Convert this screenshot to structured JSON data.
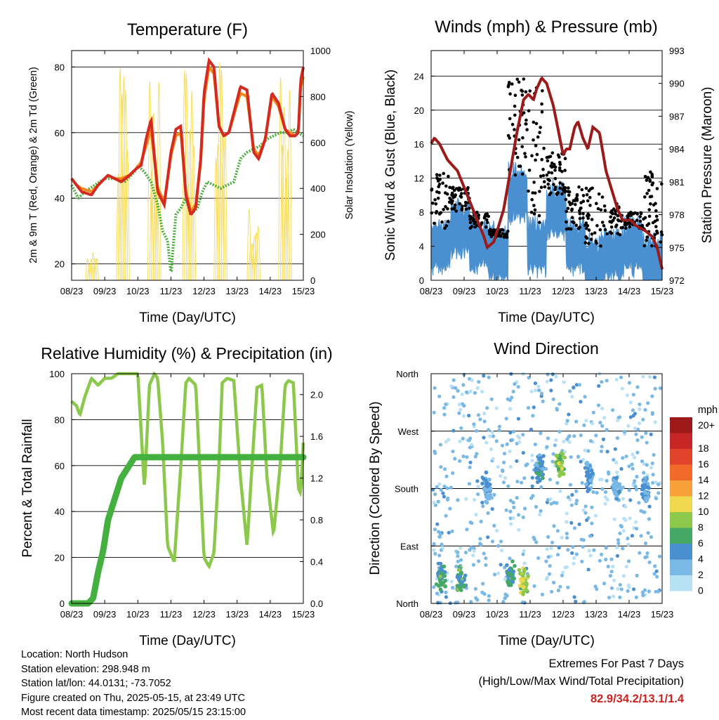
{
  "colors": {
    "temp_2m": "#d42a1f",
    "temp_9m": "#f08a1c",
    "dewpoint": "#4aae3c",
    "insolation": "#f7dd5e",
    "wind": "#4a90d0",
    "gust": "#000000",
    "pressure": "#9b1b1b",
    "rh": "#8cc84b",
    "precip": "#44b03f",
    "extremes_text": "#cc2222"
  },
  "chart_data": [
    {
      "id": "temperature",
      "type": "line",
      "title": "Temperature (F)",
      "xlabel": "Time (Day/UTC)",
      "ylabel": "2m & 9m T (Red, Orange) & 2m Td (Green)",
      "ylabel_right": "Solar Insolation (Yellow)",
      "x_ticks": [
        "08/23",
        "09/23",
        "10/23",
        "11/23",
        "12/23",
        "13/23",
        "14/23",
        "15/23"
      ],
      "xlim": [
        0,
        7
      ],
      "ylim": [
        15,
        85
      ],
      "y_ticks": [
        20,
        40,
        60,
        80
      ],
      "ylim_right": [
        0,
        1000
      ],
      "y_ticks_right": [
        0,
        200,
        400,
        600,
        800,
        1000
      ],
      "grid": true,
      "series": [
        {
          "key": "temp_2m",
          "x": [
            0,
            0.15,
            0.3,
            0.6,
            0.8,
            1.1,
            1.3,
            1.5,
            1.75,
            1.95,
            2.1,
            2.25,
            2.4,
            2.6,
            2.8,
            3.0,
            3.15,
            3.3,
            3.45,
            3.6,
            3.75,
            3.9,
            4.0,
            4.15,
            4.3,
            4.45,
            4.6,
            4.75,
            4.95,
            5.1,
            5.3,
            5.5,
            5.65,
            5.85,
            6.05,
            6.25,
            6.45,
            6.6,
            6.75,
            6.85,
            6.92,
            7.0
          ],
          "values": [
            46,
            44,
            42,
            41,
            44,
            47,
            46,
            45,
            47,
            49,
            50,
            58,
            64,
            42,
            38,
            54,
            61,
            62,
            41,
            35,
            37,
            52,
            72,
            82,
            80,
            62,
            59,
            60,
            68,
            74,
            73,
            54,
            52,
            58,
            72,
            69,
            61,
            59,
            59,
            60,
            76,
            80
          ]
        },
        {
          "key": "temp_9m",
          "x": [
            0,
            0.15,
            0.3,
            0.6,
            0.8,
            1.1,
            1.3,
            1.5,
            1.75,
            1.95,
            2.1,
            2.25,
            2.4,
            2.6,
            2.8,
            3.0,
            3.15,
            3.3,
            3.45,
            3.6,
            3.75,
            3.9,
            4.0,
            4.15,
            4.3,
            4.45,
            4.6,
            4.75,
            4.95,
            5.1,
            5.3,
            5.5,
            5.65,
            5.85,
            6.05,
            6.25,
            6.45,
            6.6,
            6.75,
            6.85,
            6.92,
            7.0
          ],
          "values": [
            46,
            44,
            43,
            42,
            44,
            47,
            46,
            46,
            47,
            49,
            51,
            56,
            61,
            43,
            39,
            53,
            59,
            60,
            42,
            36,
            38,
            51,
            70,
            80,
            78,
            62,
            59,
            60,
            67,
            72,
            71,
            55,
            53,
            58,
            71,
            68,
            61,
            60,
            59,
            60,
            74,
            77
          ]
        },
        {
          "key": "dewpoint",
          "x": [
            0,
            0.2,
            0.4,
            0.7,
            1.0,
            1.3,
            1.6,
            1.9,
            2.0,
            2.2,
            2.4,
            2.6,
            2.75,
            2.9,
            3.0,
            3.15,
            3.3,
            3.45,
            3.6,
            3.8,
            3.95,
            4.1,
            4.3,
            4.5,
            4.7,
            4.9,
            5.1,
            5.3,
            5.5,
            5.7,
            5.9,
            6.1,
            6.3,
            6.5,
            6.7,
            6.85,
            7.0
          ],
          "values": [
            44,
            40,
            42,
            44,
            46,
            46,
            45,
            48,
            50,
            48,
            45,
            38,
            30,
            27,
            17,
            35,
            37,
            40,
            35,
            37,
            42,
            45,
            44,
            43,
            44,
            45,
            52,
            54,
            55,
            56,
            58,
            59,
            60,
            60,
            61,
            60,
            59
          ]
        },
        {
          "key": "insolation",
          "type": "pulses",
          "days_peak": [
            [
              0.62,
              120
            ],
            [
              1.55,
              1000
            ],
            [
              2.5,
              1000
            ],
            [
              3.55,
              1000
            ],
            [
              4.5,
              1000
            ],
            [
              5.5,
              350
            ],
            [
              6.45,
              900
            ]
          ]
        }
      ]
    },
    {
      "id": "winds",
      "type": "scatter",
      "title": "Winds (mph) & Pressure (mb)",
      "xlabel": "Time (Day/UTC)",
      "ylabel": "Sonic Wind & Gust (Blue, Black)",
      "ylabel_right": "Station Pressure (Maroon)",
      "x_ticks": [
        "08/23",
        "09/23",
        "10/23",
        "11/23",
        "12/23",
        "13/23",
        "14/23",
        "15/23"
      ],
      "xlim": [
        0,
        7
      ],
      "ylim": [
        0,
        27
      ],
      "y_ticks": [
        0,
        4,
        8,
        12,
        16,
        20,
        24
      ],
      "ylim_right": [
        972,
        993
      ],
      "y_ticks_right": [
        972,
        975,
        978,
        981,
        984,
        987,
        990,
        993
      ],
      "grid": true,
      "pressure": {
        "x": [
          0,
          0.1,
          0.25,
          0.5,
          0.8,
          1.0,
          1.2,
          1.4,
          1.6,
          1.7,
          1.9,
          2.2,
          2.4,
          2.6,
          2.8,
          2.95,
          3.1,
          3.2,
          3.35,
          3.5,
          3.7,
          3.9,
          4.0,
          4.1,
          4.2,
          4.35,
          4.45,
          4.6,
          4.75,
          4.9,
          5.1,
          5.3,
          5.5,
          5.65,
          5.8,
          5.9,
          6.05,
          6.2,
          6.5,
          6.7,
          6.85,
          7.0
        ],
        "values": [
          984.5,
          985,
          984.5,
          983,
          982,
          980.5,
          979,
          977.5,
          976,
          975,
          975.5,
          978.5,
          982,
          985.5,
          988.5,
          989,
          988.5,
          989.5,
          990.5,
          990,
          988,
          985,
          983.5,
          984,
          984,
          986,
          986.5,
          985,
          984,
          986,
          985.5,
          982,
          980,
          978.5,
          977.5,
          977.5,
          977.5,
          977,
          976.5,
          976,
          975,
          973
        ]
      },
      "wind_mean_mph": [
        4,
        6,
        4,
        3,
        10,
        4,
        8,
        4,
        2,
        3,
        4,
        2
      ],
      "gust_max_mph": [
        13,
        11,
        8,
        6,
        25,
        23,
        15,
        11,
        11,
        9,
        8,
        13
      ]
    },
    {
      "id": "humidity",
      "type": "line",
      "title": "Relative Humidity (%) & Precipitation (in)",
      "xlabel": "Time (Day/UTC)",
      "ylabel": "Percent & Total Rainfall",
      "x_ticks": [
        "08/23",
        "09/23",
        "10/23",
        "11/23",
        "12/23",
        "13/23",
        "14/23",
        "15/23"
      ],
      "xlim": [
        0,
        7
      ],
      "ylim": [
        0,
        100
      ],
      "y_ticks": [
        0,
        20,
        40,
        60,
        80,
        100
      ],
      "ylim_right": [
        0,
        2.2
      ],
      "y_ticks_right": [
        0.0,
        0.4,
        0.8,
        1.2,
        1.6,
        2.0
      ],
      "grid": true,
      "series": [
        {
          "key": "rh",
          "x": [
            0,
            0.15,
            0.25,
            0.4,
            0.6,
            0.8,
            1.0,
            1.2,
            1.4,
            1.6,
            1.8,
            2.0,
            2.1,
            2.2,
            2.35,
            2.5,
            2.6,
            2.75,
            2.9,
            3.1,
            3.3,
            3.45,
            3.55,
            3.75,
            4.0,
            4.15,
            4.3,
            4.45,
            4.55,
            4.7,
            4.9,
            5.1,
            5.3,
            5.45,
            5.6,
            5.75,
            5.9,
            6.1,
            6.3,
            6.45,
            6.55,
            6.7,
            6.85,
            6.92,
            7.0
          ],
          "values": [
            88,
            86,
            82,
            90,
            98,
            95,
            98,
            98,
            100,
            100,
            100,
            100,
            75,
            50,
            95,
            100,
            98,
            70,
            25,
            18,
            60,
            96,
            98,
            95,
            20,
            16,
            22,
            60,
            96,
            98,
            97,
            55,
            25,
            60,
            94,
            95,
            55,
            30,
            60,
            95,
            97,
            96,
            50,
            48,
            70
          ]
        },
        {
          "key": "precip",
          "x": [
            0,
            0.3,
            0.5,
            0.65,
            0.8,
            0.95,
            1.1,
            1.3,
            1.5,
            1.7,
            1.9,
            2.1,
            2.3,
            3.0,
            4.0,
            5.0,
            6.0,
            7.0
          ],
          "values": [
            0,
            0,
            0,
            0.05,
            0.3,
            0.5,
            0.8,
            1.0,
            1.2,
            1.3,
            1.4,
            1.4,
            1.4,
            1.4,
            1.4,
            1.4,
            1.4,
            1.4
          ]
        }
      ]
    },
    {
      "id": "wind_direction",
      "type": "scatter",
      "title": "Wind Direction",
      "xlabel": "Time (Day/UTC)",
      "ylabel": "Direction (Colored By Speed)",
      "x_ticks": [
        "08/23",
        "09/23",
        "10/23",
        "11/23",
        "12/23",
        "13/23",
        "14/23",
        "15/23"
      ],
      "xlim": [
        0,
        7
      ],
      "y_labels": [
        "North",
        "East",
        "South",
        "West",
        "North"
      ],
      "ylim": [
        0,
        360
      ],
      "grid": true,
      "legend_title": "mph",
      "legend_labels": [
        "20+",
        "18",
        "16",
        "14",
        "12",
        "10",
        "8",
        "6",
        "4",
        "2",
        "0"
      ],
      "legend_colors": [
        "#9e1a1a",
        "#c62626",
        "#e0452b",
        "#f06a2a",
        "#f8a13a",
        "#f0d84e",
        "#8cc84b",
        "#45a864",
        "#4a8fcf",
        "#7ab8e6",
        "#b8e1f6"
      ],
      "clusters": [
        {
          "x": 0.3,
          "dir": 40,
          "speed": 5
        },
        {
          "x": 0.9,
          "dir": 40,
          "speed": 6
        },
        {
          "x": 1.7,
          "dir": 180,
          "speed": 3
        },
        {
          "x": 2.4,
          "dir": 40,
          "speed": 5
        },
        {
          "x": 2.8,
          "dir": 30,
          "speed": 9
        },
        {
          "x": 3.3,
          "dir": 210,
          "speed": 4
        },
        {
          "x": 3.9,
          "dir": 220,
          "speed": 8
        },
        {
          "x": 4.8,
          "dir": 200,
          "speed": 3
        },
        {
          "x": 5.6,
          "dir": 180,
          "speed": 3
        },
        {
          "x": 6.5,
          "dir": 180,
          "speed": 3
        }
      ]
    }
  ],
  "footer": {
    "location": "Location: North Hudson",
    "elevation": "Station elevation: 298.948 m",
    "latlon": "Station lat/lon: 44.0131; -73.7052",
    "created": "Figure created on Thu, 2025-05-15, at 23:49 UTC",
    "recent": "Most recent data timestamp: 2025/05/15 23:15:00"
  },
  "extremes": {
    "title": "Extremes For Past 7 Days",
    "subtitle": "(High/Low/Max Wind/Total Precipitation)",
    "values": "82.9/34.2/13.1/1.4"
  }
}
